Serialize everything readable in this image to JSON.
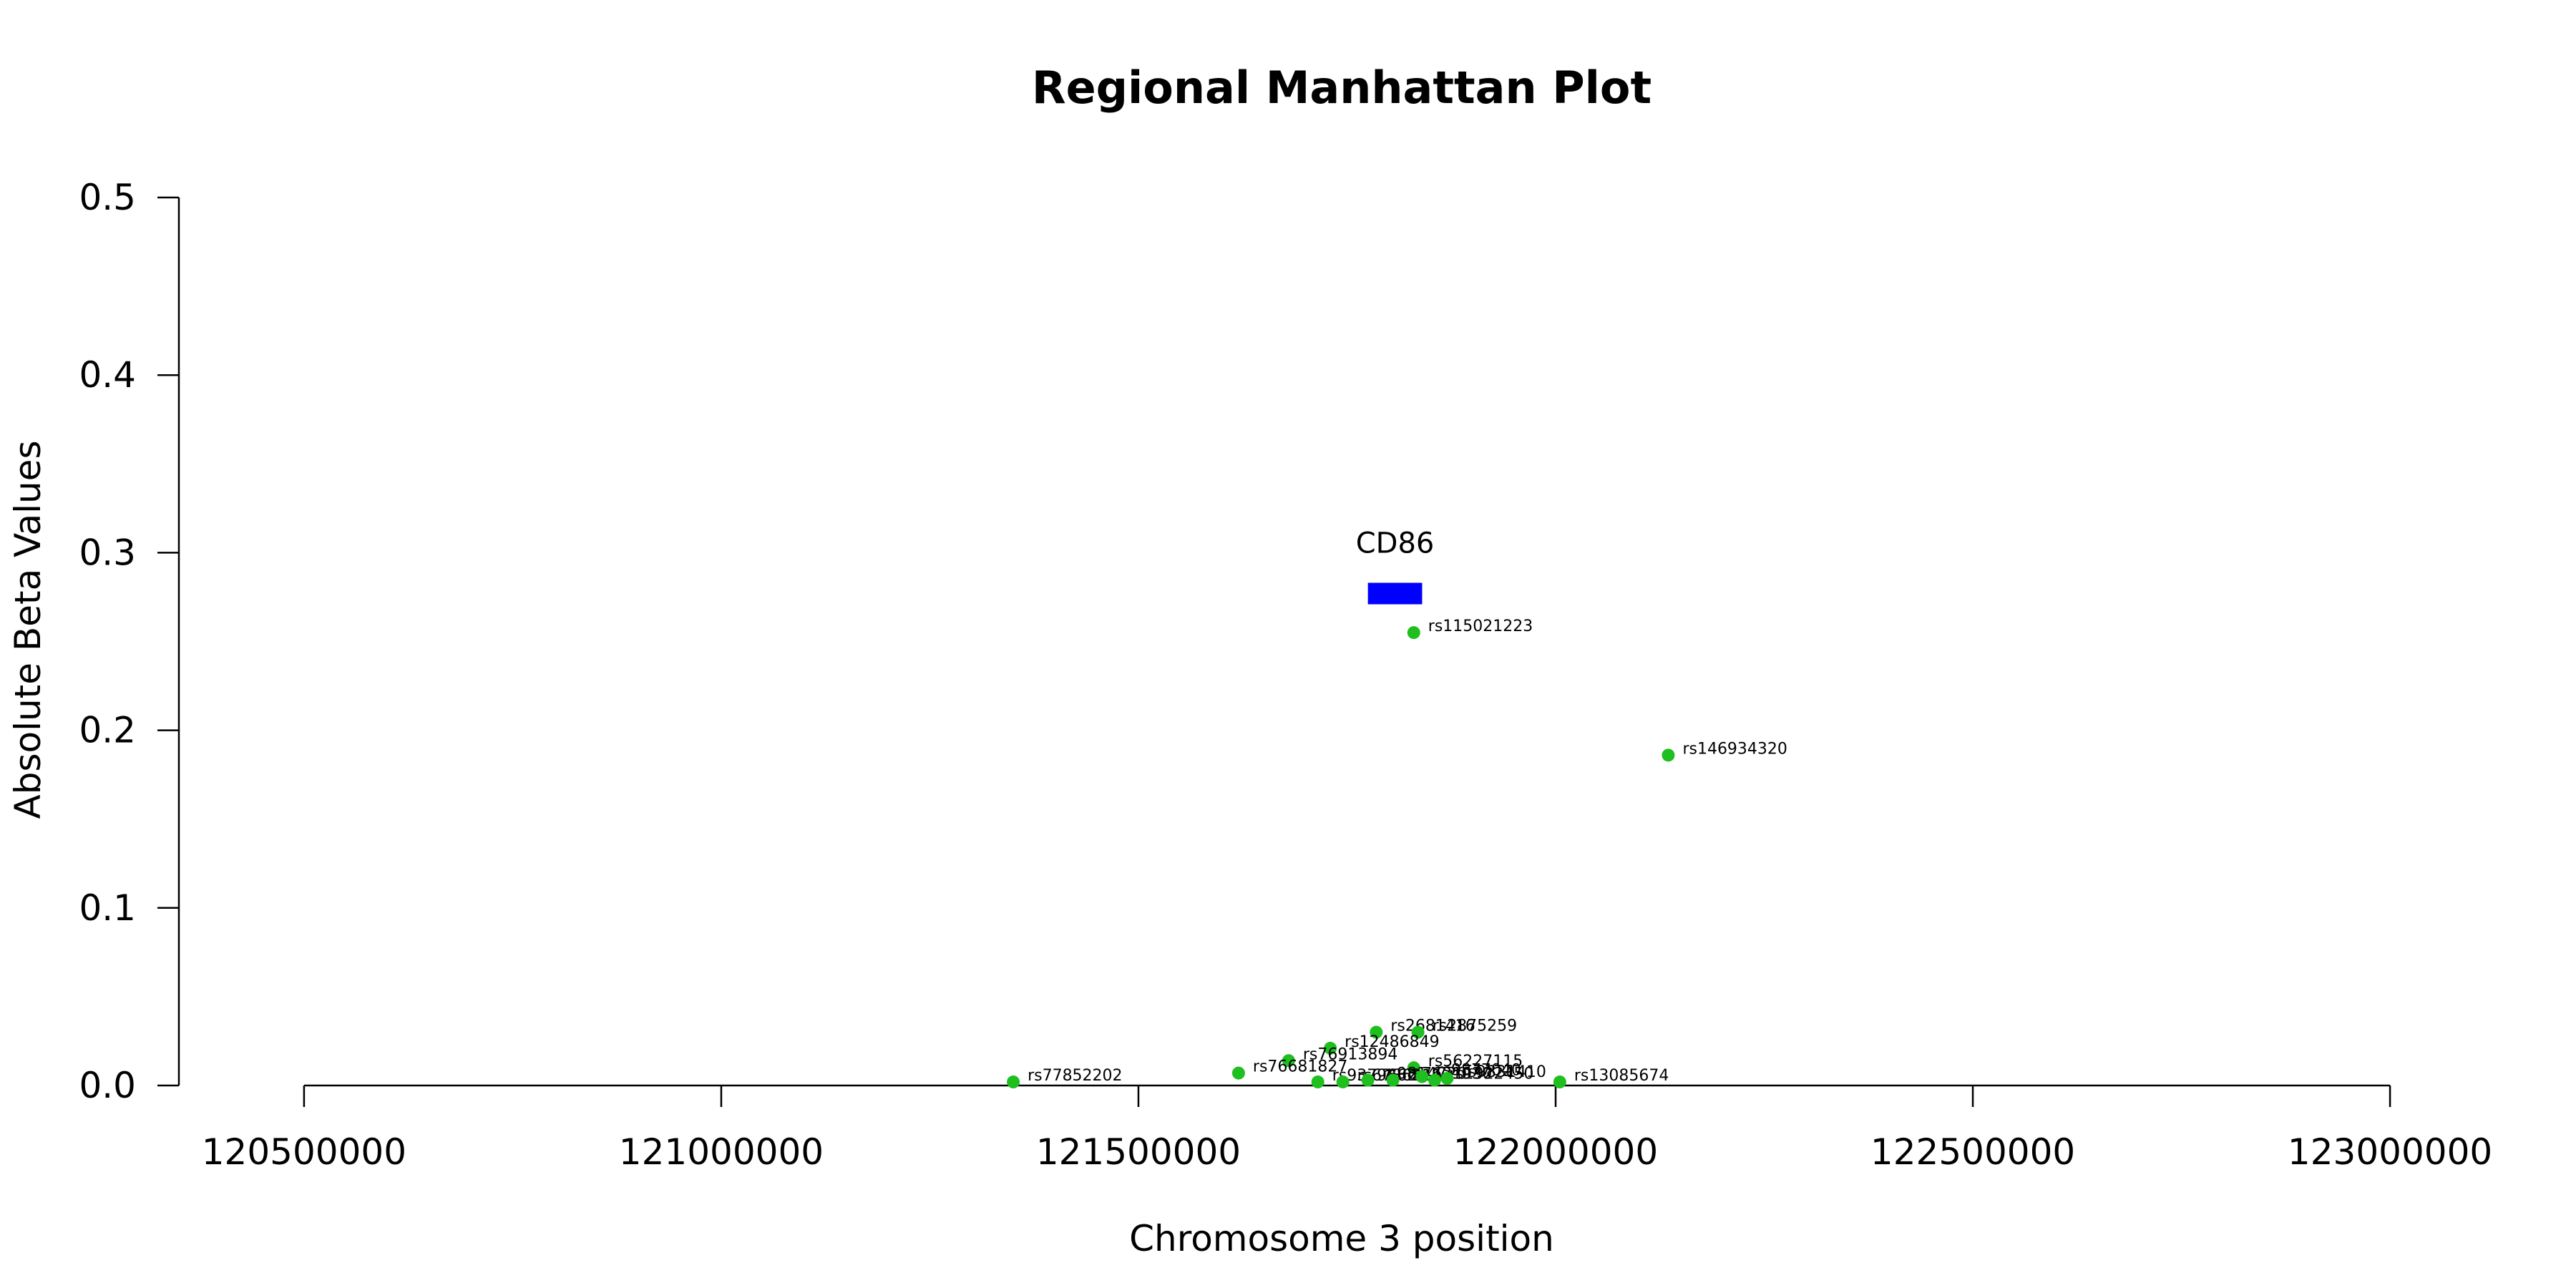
{
  "chart_data": {
    "type": "scatter",
    "title": "Regional Manhattan Plot",
    "xlabel": "Chromosome 3 position",
    "ylabel": "Absolute Beta Values",
    "xlim": [
      120350000,
      123150000
    ],
    "ylim": [
      0,
      0.5
    ],
    "x_ticks": [
      120500000,
      121000000,
      121500000,
      122000000,
      122500000,
      123000000
    ],
    "x_tick_labels": [
      "120500000",
      "121000000",
      "121500000",
      "122000000",
      "122500000",
      "123000000"
    ],
    "y_ticks": [
      0,
      0.1,
      0.2,
      0.3,
      0.4,
      0.5
    ],
    "y_tick_labels": [
      "0.0",
      "0.1",
      "0.2",
      "0.3",
      "0.4",
      "0.5"
    ],
    "grid": false,
    "point_color": "#1fbf1f",
    "gene": {
      "name": "CD86",
      "start": 121775000,
      "end": 121840000,
      "y": 0.277,
      "color": "#0000ff"
    },
    "points": [
      {
        "id": "rs115021223",
        "x": 121830000,
        "y": 0.255
      },
      {
        "id": "rs146934320",
        "x": 122135000,
        "y": 0.186
      },
      {
        "id": "rs2681416",
        "x": 121785000,
        "y": 0.03
      },
      {
        "id": "rs2875259",
        "x": 121835000,
        "y": 0.03
      },
      {
        "id": "rs12486849",
        "x": 121730000,
        "y": 0.021
      },
      {
        "id": "rs76913894",
        "x": 121680000,
        "y": 0.014
      },
      {
        "id": "rs76681827",
        "x": 121620000,
        "y": 0.007
      },
      {
        "id": "rs56227115",
        "x": 121830000,
        "y": 0.01
      },
      {
        "id": "rs77852202",
        "x": 121350000,
        "y": 0.002
      },
      {
        "id": "rs13085674",
        "x": 122005000,
        "y": 0.002
      },
      {
        "id": "rs9379662",
        "x": 121715000,
        "y": 0.002
      },
      {
        "id": "rs6786211",
        "x": 121745000,
        "y": 0.002
      },
      {
        "id": "rs9814720",
        "x": 121775000,
        "y": 0.003
      },
      {
        "id": "rs7621930",
        "x": 121805000,
        "y": 0.003
      },
      {
        "id": "rs9877040",
        "x": 121840000,
        "y": 0.005
      },
      {
        "id": "rs1922450",
        "x": 121855000,
        "y": 0.003
      },
      {
        "id": "rs9831410",
        "x": 121870000,
        "y": 0.004
      }
    ]
  }
}
